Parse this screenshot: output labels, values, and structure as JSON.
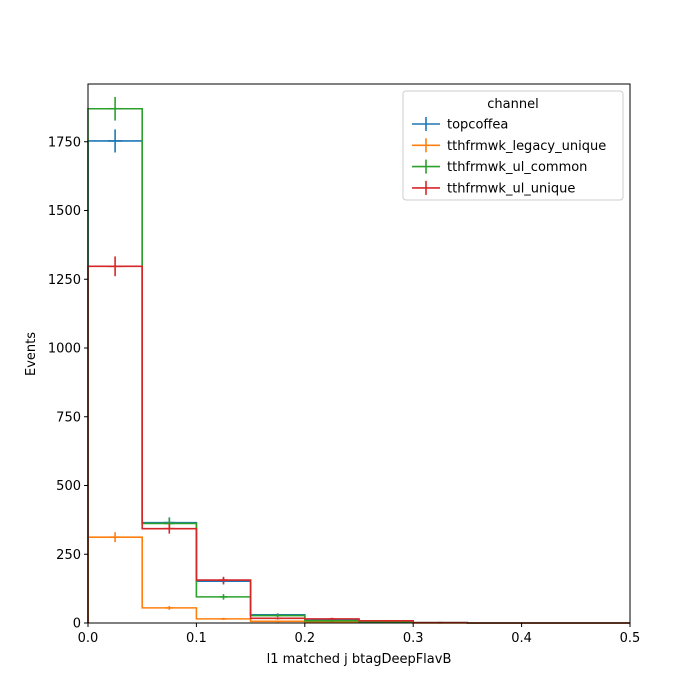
{
  "chart_data": {
    "type": "histogram",
    "xlabel": "l1 matched j btagDeepFlavB",
    "ylabel": "Events",
    "xlim": [
      0,
      0.5
    ],
    "ylim": [
      0,
      1960
    ],
    "xticks": [
      "0.0",
      "0.1",
      "0.2",
      "0.3",
      "0.4",
      "0.5"
    ],
    "yticks": [
      "0",
      "250",
      "500",
      "750",
      "1000",
      "1250",
      "1500",
      "1750"
    ],
    "grid": false,
    "legend": {
      "title": "channel",
      "placement": "top-right"
    },
    "bin_edges": [
      0,
      0.05,
      0.1,
      0.15,
      0.2,
      0.25,
      0.3,
      0.35,
      0.4,
      0.45,
      0.5
    ],
    "series": [
      {
        "name": "topcoffea",
        "color": "#1f77b4",
        "values": [
          1753,
          365,
          152,
          30,
          12,
          5,
          1,
          0,
          0,
          0
        ],
        "errors": [
          42,
          19,
          12,
          5,
          3,
          2,
          1,
          0,
          0,
          0
        ]
      },
      {
        "name": "tthfrmwk_legacy_unique",
        "color": "#ff7f0e",
        "values": [
          312,
          55,
          15,
          6,
          3,
          2,
          0,
          0,
          0,
          0
        ],
        "errors": [
          18,
          7,
          4,
          2,
          2,
          1,
          0,
          0,
          0,
          0
        ]
      },
      {
        "name": "tthfrmwk_ul_common",
        "color": "#2ca02c",
        "values": [
          1870,
          362,
          95,
          27,
          8,
          3,
          1,
          0,
          0,
          0
        ],
        "errors": [
          43,
          19,
          10,
          5,
          3,
          2,
          1,
          0,
          0,
          0
        ]
      },
      {
        "name": "tthfrmwk_ul_unique",
        "color": "#d62728",
        "values": [
          1297,
          343,
          156,
          17,
          15,
          8,
          1,
          0,
          0,
          0
        ],
        "errors": [
          36,
          18,
          12,
          4,
          4,
          3,
          1,
          0,
          0,
          0
        ]
      }
    ]
  }
}
